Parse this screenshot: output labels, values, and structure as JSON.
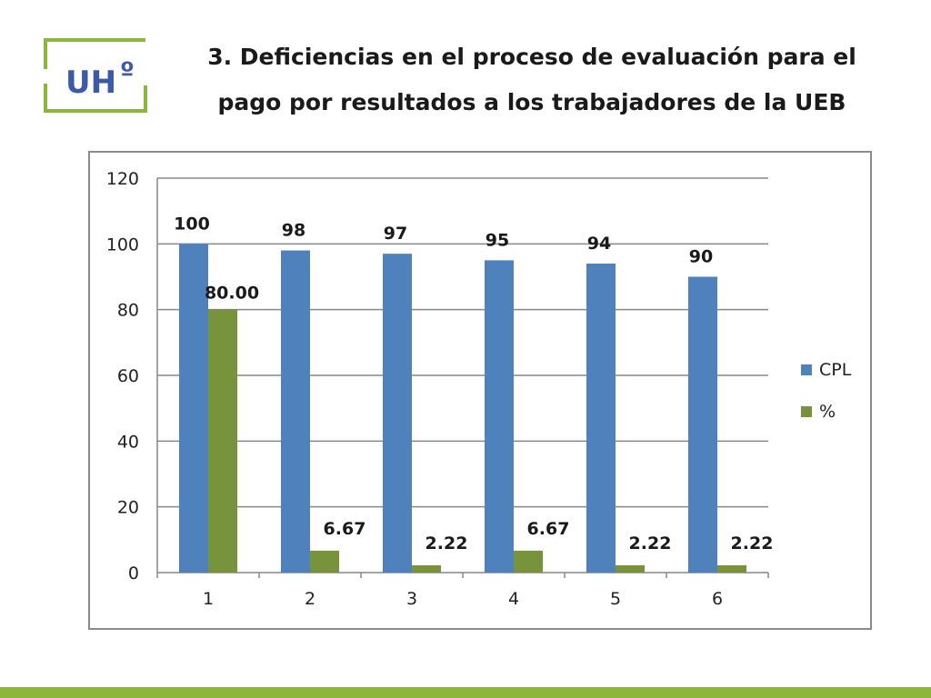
{
  "title": {
    "line1": "3. Deficiencias en el proceso de evaluación para el",
    "line2": "pago por resultados a los trabajadores de la UEB"
  },
  "logo": {
    "text": "UH",
    "mark": "º"
  },
  "colors": {
    "brand_green": "#8db63c",
    "cpl": "#4f81bd",
    "pct": "#77933c",
    "grid": "#878787"
  },
  "chart_data": {
    "type": "bar",
    "categories": [
      "1",
      "2",
      "3",
      "4",
      "5",
      "6"
    ],
    "series": [
      {
        "name": "CPL",
        "values": [
          100,
          98,
          97,
          95,
          94,
          90
        ],
        "labels": [
          "100",
          "98",
          "97",
          "95",
          "94",
          "90"
        ],
        "color": "#4f81bd"
      },
      {
        "name": "%",
        "values": [
          80.0,
          6.67,
          2.22,
          6.67,
          2.22,
          2.22
        ],
        "labels": [
          "80.00",
          "6.67",
          "2.22",
          "6.67",
          "2.22",
          "2.22"
        ],
        "color": "#77933c"
      }
    ],
    "yticks": [
      "0",
      "20",
      "40",
      "60",
      "80",
      "100",
      "120"
    ],
    "ylim": [
      0,
      120
    ],
    "grid": true,
    "legend": "right",
    "title": "",
    "xlabel": "",
    "ylabel": ""
  }
}
